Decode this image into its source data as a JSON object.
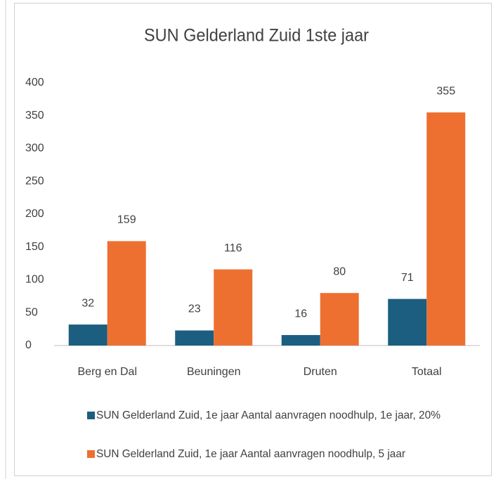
{
  "chart_data": {
    "type": "bar",
    "title": "SUN Gelderland Zuid 1ste jaar",
    "categories": [
      "Berg en Dal",
      "Beuningen",
      "Druten",
      "Totaal"
    ],
    "series": [
      {
        "name": "SUN Gelderland Zuid, 1e jaar Aantal aanvragen noodhulp, 1e jaar, 20%",
        "color": "#1b5e80",
        "values": [
          32,
          23,
          16,
          71
        ]
      },
      {
        "name": "SUN Gelderland Zuid, 1e jaar Aantal aanvragen noodhulp,  5 jaar",
        "color": "#ed7031",
        "values": [
          159,
          116,
          80,
          355
        ]
      }
    ],
    "ylim": [
      0,
      400
    ],
    "yticks": [
      0,
      50,
      100,
      150,
      200,
      250,
      300,
      350,
      400
    ],
    "grid": false,
    "legend": "bottom"
  }
}
